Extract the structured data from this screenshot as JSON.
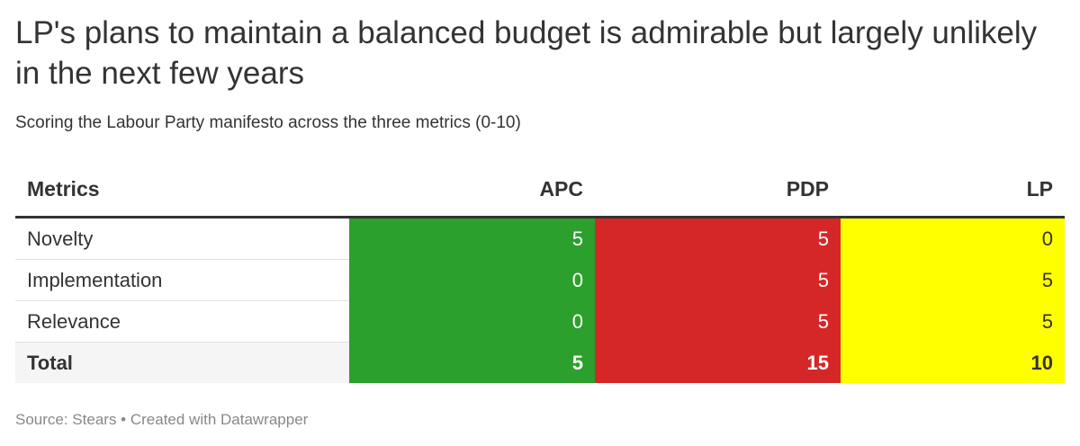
{
  "title": "LP's plans to maintain a balanced budget is admirable but largely unlikely in the next few years",
  "subtitle": "Scoring the Labour Party manifesto across the three metrics (0-10)",
  "colors": {
    "APC": "#2ca02c",
    "PDP": "#d62728",
    "LP": "#ffff00"
  },
  "chart_data": {
    "type": "table",
    "columns": [
      "Metrics",
      "APC",
      "PDP",
      "LP"
    ],
    "rows": [
      {
        "metric": "Novelty",
        "APC": "5",
        "PDP": "5",
        "LP": "0"
      },
      {
        "metric": "Implementation",
        "APC": "0",
        "PDP": "5",
        "LP": "5"
      },
      {
        "metric": "Relevance",
        "APC": "0",
        "PDP": "5",
        "LP": "5"
      },
      {
        "metric": "Total",
        "APC": "5",
        "PDP": "15",
        "LP": "10"
      }
    ]
  },
  "footer": {
    "source": "Source: Stears • Created with Datawrapper"
  }
}
